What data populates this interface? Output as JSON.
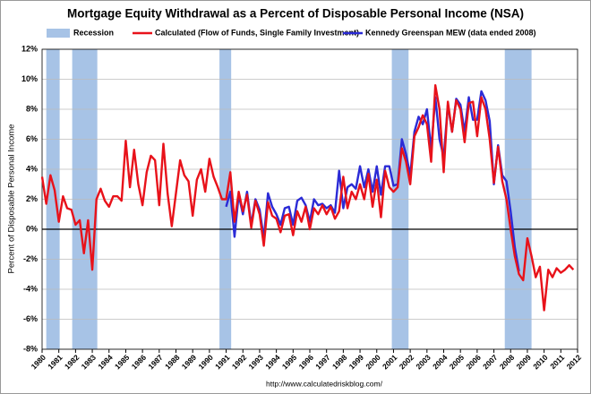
{
  "chart_data": {
    "type": "line",
    "title": "Mortgage Equity Withdrawal as a Percent of Disposable Personal Income (NSA)",
    "y_label": "Percent of Disposable Personal Income",
    "source": "http://www.calculatedriskblog.com/",
    "recession_label": "Recession",
    "recession_color": "#a7c3e6",
    "recessions": [
      [
        1980.25,
        1981.05
      ],
      [
        1981.8,
        1983.3
      ],
      [
        1990.6,
        1991.3
      ],
      [
        2000.9,
        2001.9
      ],
      [
        2007.65,
        2009.25
      ]
    ],
    "x": [
      1980,
      1980.25,
      1980.5,
      1980.75,
      1981,
      1981.25,
      1981.5,
      1981.75,
      1982,
      1982.25,
      1982.5,
      1982.75,
      1983,
      1983.25,
      1983.5,
      1983.75,
      1984,
      1984.25,
      1984.5,
      1984.75,
      1985,
      1985.25,
      1985.5,
      1985.75,
      1986,
      1986.25,
      1986.5,
      1986.75,
      1987,
      1987.25,
      1987.5,
      1987.75,
      1988,
      1988.25,
      1988.5,
      1988.75,
      1989,
      1989.25,
      1989.5,
      1989.75,
      1990,
      1990.25,
      1990.5,
      1990.75,
      1991,
      1991.25,
      1991.5,
      1991.75,
      1992,
      1992.25,
      1992.5,
      1992.75,
      1993,
      1993.25,
      1993.5,
      1993.75,
      1994,
      1994.25,
      1994.5,
      1994.75,
      1995,
      1995.25,
      1995.5,
      1995.75,
      1996,
      1996.25,
      1996.5,
      1996.75,
      1997,
      1997.25,
      1997.5,
      1997.75,
      1998,
      1998.25,
      1998.5,
      1998.75,
      1999,
      1999.25,
      1999.5,
      1999.75,
      2000,
      2000.25,
      2000.5,
      2000.75,
      2001,
      2001.25,
      2001.5,
      2001.75,
      2002,
      2002.25,
      2002.5,
      2002.75,
      2003,
      2003.25,
      2003.5,
      2003.75,
      2004,
      2004.25,
      2004.5,
      2004.75,
      2005,
      2005.25,
      2005.5,
      2005.75,
      2006,
      2006.25,
      2006.5,
      2006.75,
      2007,
      2007.25,
      2007.5,
      2007.75,
      2008,
      2008.25,
      2008.5,
      2008.75,
      2009,
      2009.25,
      2009.5,
      2009.75,
      2010,
      2010.25,
      2010.5,
      2010.75,
      2011,
      2011.25,
      2011.5,
      2011.75
    ],
    "series": [
      {
        "name": "Calculated (Flow of Funds, Single Family Investment)",
        "color": "#e8121a",
        "values": [
          3.5,
          1.7,
          3.6,
          2.6,
          0.5,
          2.2,
          1.4,
          1.3,
          0.3,
          0.6,
          -1.6,
          0.6,
          -2.7,
          2.0,
          2.7,
          1.9,
          1.5,
          2.2,
          2.2,
          1.9,
          5.9,
          2.8,
          5.3,
          3.0,
          1.6,
          3.8,
          4.9,
          4.6,
          1.6,
          5.7,
          2.4,
          0.2,
          2.4,
          4.6,
          3.6,
          3.2,
          0.9,
          3.3,
          4.0,
          2.5,
          4.7,
          3.5,
          2.8,
          2.0,
          2.0,
          3.8,
          0.5,
          2.5,
          1.2,
          2.3,
          0.1,
          1.9,
          1.0,
          -1.1,
          1.8,
          0.9,
          0.7,
          -0.2,
          0.9,
          1.0,
          -0.4,
          1.2,
          0.5,
          1.5,
          0.0,
          1.4,
          1.0,
          1.6,
          1.0,
          1.5,
          0.7,
          1.2,
          3.5,
          1.4,
          2.5,
          2.0,
          3.0,
          2.0,
          3.7,
          1.5,
          3.3,
          0.8,
          3.9,
          2.8,
          2.5,
          2.8,
          5.4,
          4.5,
          3.0,
          6.2,
          6.8,
          7.6,
          7.0,
          4.5,
          9.6,
          8.0,
          3.8,
          8.5,
          6.5,
          8.6,
          8.0,
          5.8,
          8.4,
          8.5,
          6.2,
          8.8,
          8.0,
          6.0,
          3.1,
          5.5,
          3.2,
          2.0,
          0.0,
          -1.8,
          -3.0,
          -3.4,
          -0.6,
          -1.8,
          -3.2,
          -2.5,
          -5.4,
          -2.7,
          -3.2,
          -2.6,
          -2.9,
          -2.7,
          -2.4,
          -2.7
        ]
      },
      {
        "name": "Kennedy Greenspan MEW (data ended 2008)",
        "color": "#2b2bd6",
        "values": [
          null,
          null,
          null,
          null,
          null,
          null,
          null,
          null,
          null,
          null,
          null,
          null,
          null,
          null,
          null,
          null,
          null,
          null,
          null,
          null,
          null,
          null,
          null,
          null,
          null,
          null,
          null,
          null,
          null,
          null,
          null,
          null,
          null,
          null,
          null,
          null,
          null,
          null,
          null,
          null,
          null,
          null,
          null,
          null,
          1.5,
          2.5,
          -0.5,
          2.3,
          1.0,
          2.5,
          0.3,
          2.0,
          1.3,
          -0.6,
          2.4,
          1.5,
          1.0,
          0.3,
          1.4,
          1.5,
          0.3,
          1.9,
          2.1,
          1.6,
          0.5,
          2.0,
          1.6,
          1.7,
          1.4,
          1.6,
          1.1,
          3.9,
          1.4,
          2.8,
          3.0,
          2.7,
          4.2,
          2.8,
          4.0,
          2.5,
          4.2,
          2.3,
          4.2,
          4.2,
          2.9,
          3.0,
          6.0,
          5.0,
          3.6,
          6.5,
          7.5,
          7.0,
          8.0,
          5.3,
          8.8,
          6.0,
          4.8,
          8.3,
          6.5,
          8.7,
          8.3,
          6.5,
          8.8,
          7.3,
          7.3,
          9.2,
          8.6,
          7.2,
          3.0,
          5.6,
          3.6,
          3.2,
          1.2,
          -1.2,
          -2.8,
          null,
          null,
          null,
          null,
          null,
          null,
          null,
          null,
          null,
          null,
          null,
          null,
          null
        ]
      }
    ],
    "xlim": [
      1980,
      2012
    ],
    "xticks": [
      1980,
      1981,
      1982,
      1983,
      1984,
      1985,
      1986,
      1987,
      1988,
      1989,
      1990,
      1991,
      1992,
      1993,
      1994,
      1995,
      1996,
      1997,
      1998,
      1999,
      2000,
      2001,
      2002,
      2003,
      2004,
      2005,
      2006,
      2007,
      2008,
      2009,
      2010,
      2011,
      2012
    ],
    "ylim": [
      -8,
      12
    ],
    "yticks": [
      {
        "value": -8,
        "label": "-8%"
      },
      {
        "value": -6,
        "label": "-6%"
      },
      {
        "value": -4,
        "label": "-4%"
      },
      {
        "value": -2,
        "label": "-2%"
      },
      {
        "value": 0,
        "label": "0%"
      },
      {
        "value": 2,
        "label": "2%"
      },
      {
        "value": 4,
        "label": "4%"
      },
      {
        "value": 6,
        "label": "6%"
      },
      {
        "value": 8,
        "label": "8%"
      },
      {
        "value": 10,
        "label": "10%"
      },
      {
        "value": 12,
        "label": "12%"
      }
    ],
    "grid": true
  }
}
